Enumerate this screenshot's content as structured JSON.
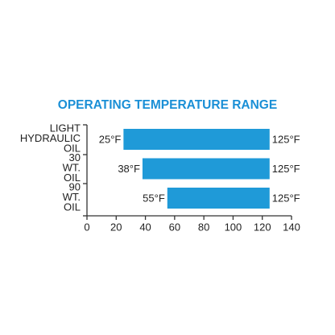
{
  "chart_data": {
    "type": "range-bar",
    "title": "OPERATING TEMPERATURE RANGE",
    "categories": [
      "LIGHT HYDRAULIC OIL",
      "30 WT. OIL",
      "90 WT. OIL"
    ],
    "starts": [
      25,
      38,
      55
    ],
    "start_labels": [
      "25°F",
      "38°F",
      "55°F"
    ],
    "values": [
      125,
      125,
      125
    ],
    "value_labels": [
      "125°F",
      "125°F",
      "125°F"
    ],
    "color": "#1f9ad8",
    "xlim": [
      0,
      140
    ],
    "xticks": [
      0,
      20,
      40,
      60,
      80,
      100,
      120,
      140
    ]
  }
}
